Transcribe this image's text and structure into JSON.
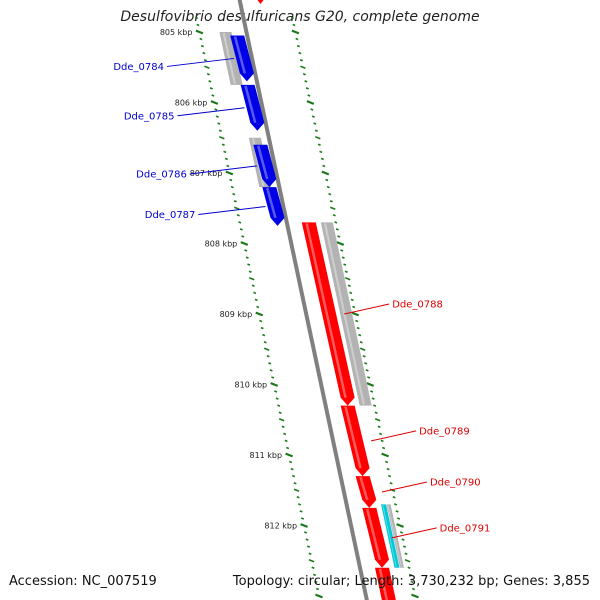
{
  "title": "Desulfovibrio desulfuricans G20, complete genome",
  "footer": {
    "accession": "Accession: NC_007519",
    "topology": "Topology: circular; Length: 3,730,232 bp; Genes: 3,855"
  },
  "colors": {
    "forward_gene": "#ff0000",
    "reverse_gene": "#0000e6",
    "orf": "#b3b3b3",
    "backbone": "#808080",
    "tick": "#1a7a1a",
    "cyan_feature": "#00c8d8"
  },
  "ticks": [
    {
      "label": "805 kbp",
      "kbp": 805
    },
    {
      "label": "806 kbp",
      "kbp": 806
    },
    {
      "label": "807 kbp",
      "kbp": 807
    },
    {
      "label": "808 kbp",
      "kbp": 808
    },
    {
      "label": "809 kbp",
      "kbp": 809
    },
    {
      "label": "810 kbp",
      "kbp": 810
    },
    {
      "label": "811 kbp",
      "kbp": 811
    },
    {
      "label": "812 kbp",
      "kbp": 812
    }
  ],
  "genes": [
    {
      "label": "Dde_0784",
      "strand": "reverse",
      "start_kbp": 805.05,
      "end_kbp": 805.7
    },
    {
      "label": "Dde_0785",
      "strand": "reverse",
      "start_kbp": 805.75,
      "end_kbp": 806.4
    },
    {
      "label": "Dde_0786",
      "strand": "reverse",
      "start_kbp": 806.6,
      "end_kbp": 807.2
    },
    {
      "label": "Dde_0787",
      "strand": "reverse",
      "start_kbp": 807.2,
      "end_kbp": 807.75
    },
    {
      "label": "Dde_0788",
      "strand": "forward",
      "start_kbp": 807.7,
      "end_kbp": 810.3
    },
    {
      "label": "Dde_0789",
      "strand": "forward",
      "start_kbp": 810.3,
      "end_kbp": 811.3
    },
    {
      "label": "Dde_0790",
      "strand": "forward",
      "start_kbp": 811.3,
      "end_kbp": 811.75
    },
    {
      "label": "Dde_0791",
      "strand": "forward",
      "start_kbp": 811.75,
      "end_kbp": 812.6
    }
  ]
}
